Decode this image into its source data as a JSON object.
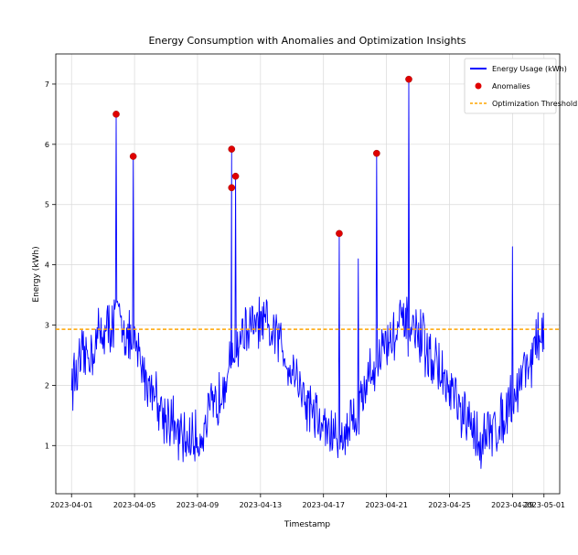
{
  "chart_data": {
    "type": "line",
    "title": "Energy Consumption with Anomalies and Optimization Insights",
    "xlabel": "Timestamp",
    "ylabel": "Energy (kWh)",
    "x_range": [
      "2023-03-31",
      "2023-05-02"
    ],
    "ylim": [
      0.2,
      7.5
    ],
    "x_ticks": [
      "2023-04-01",
      "2023-04-05",
      "2023-04-09",
      "2023-04-13",
      "2023-04-17",
      "2023-04-21",
      "2023-04-25",
      "2023-04-29",
      "2023-05-01"
    ],
    "y_ticks": [
      1,
      2,
      3,
      4,
      5,
      6,
      7
    ],
    "grid": true,
    "legend_position": "top-right",
    "colors": {
      "usage": "#0000ff",
      "anomaly": "#e00000",
      "threshold": "#ffa500"
    },
    "series": [
      {
        "name": "Energy Usage (kWh)",
        "kind": "line",
        "start": "2023-04-01",
        "end": "2023-05-01",
        "baseline_points": [
          [
            "2023-04-01",
            2.1
          ],
          [
            "2023-04-02",
            2.5
          ],
          [
            "2023-04-03",
            2.9
          ],
          [
            "2023-04-04",
            3.1
          ],
          [
            "2023-04-05",
            2.6
          ],
          [
            "2023-04-06",
            2.0
          ],
          [
            "2023-04-07",
            1.5
          ],
          [
            "2023-04-08",
            1.1
          ],
          [
            "2023-04-09",
            1.1
          ],
          [
            "2023-04-10",
            1.6
          ],
          [
            "2023-04-11",
            2.3
          ],
          [
            "2023-04-12",
            2.9
          ],
          [
            "2023-04-13",
            3.0
          ],
          [
            "2023-04-14",
            2.8
          ],
          [
            "2023-04-15",
            2.3
          ],
          [
            "2023-04-16",
            1.7
          ],
          [
            "2023-04-17",
            1.3
          ],
          [
            "2023-04-18",
            1.1
          ],
          [
            "2023-04-19",
            1.5
          ],
          [
            "2023-04-20",
            2.2
          ],
          [
            "2023-04-21",
            2.7
          ],
          [
            "2023-04-22",
            3.0
          ],
          [
            "2023-04-23",
            2.8
          ],
          [
            "2023-04-24",
            2.4
          ],
          [
            "2023-04-25",
            1.9
          ],
          [
            "2023-04-26",
            1.4
          ],
          [
            "2023-04-27",
            1.1
          ],
          [
            "2023-04-28",
            1.3
          ],
          [
            "2023-04-29",
            1.8
          ],
          [
            "2023-04-30",
            2.4
          ],
          [
            "2023-05-01",
            2.9
          ]
        ],
        "spikes": [
          [
            "2023-04-03 20:00",
            6.5
          ],
          [
            "2023-04-04 22:00",
            5.8
          ],
          [
            "2023-04-11 04:00",
            5.9
          ],
          [
            "2023-04-11 04:00",
            5.3
          ],
          [
            "2023-04-11 10:00",
            5.5
          ],
          [
            "2023-04-18 00:00",
            4.5
          ],
          [
            "2023-04-19 05:00",
            4.1
          ],
          [
            "2023-04-20 09:00",
            5.85
          ],
          [
            "2023-04-22 10:00",
            7.1
          ],
          [
            "2023-04-29 00:00",
            4.3
          ]
        ]
      },
      {
        "name": "Anomalies",
        "kind": "scatter",
        "points": [
          [
            "2023-04-03 20:00",
            6.5
          ],
          [
            "2023-04-04 22:00",
            5.8
          ],
          [
            "2023-04-11 04:00",
            5.92
          ],
          [
            "2023-04-11 04:00",
            5.28
          ],
          [
            "2023-04-11 10:00",
            5.47
          ],
          [
            "2023-04-18 00:00",
            4.52
          ],
          [
            "2023-04-20 09:00",
            5.85
          ],
          [
            "2023-04-22 10:00",
            7.08
          ]
        ]
      },
      {
        "name": "Optimization Threshold",
        "kind": "hline",
        "value": 2.93
      }
    ]
  }
}
